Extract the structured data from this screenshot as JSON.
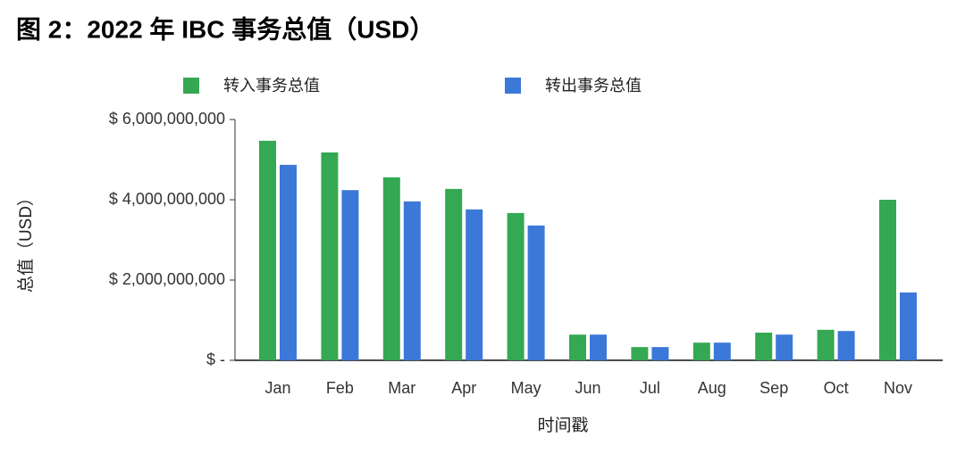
{
  "chart_data": {
    "type": "bar",
    "title": "图 2：2022 年 IBC 事务总值（USD）",
    "x_label": "时间戳",
    "y_label": "总值（USD）",
    "categories": [
      "Jan",
      "Feb",
      "Mar",
      "Apr",
      "May",
      "Jun",
      "Jul",
      "Aug",
      "Sep",
      "Oct",
      "Nov"
    ],
    "series": [
      {
        "name": "转入事务总值",
        "color": "#34a853",
        "values": [
          5470000000,
          5180000000,
          4560000000,
          4270000000,
          3670000000,
          640000000,
          330000000,
          440000000,
          690000000,
          760000000,
          4000000000
        ]
      },
      {
        "name": "转出事务总值",
        "color": "#3c78d8",
        "values": [
          4870000000,
          4240000000,
          3960000000,
          3760000000,
          3360000000,
          640000000,
          330000000,
          440000000,
          640000000,
          730000000,
          1690000000
        ]
      }
    ],
    "ylim": [
      0,
      6000000000
    ],
    "yticks": [
      {
        "value": 0,
        "label": "$ -"
      },
      {
        "value": 2000000000,
        "label": "$ 2,000,000,000"
      },
      {
        "value": 4000000000,
        "label": "$ 4,000,000,000"
      },
      {
        "value": 6000000000,
        "label": "$ 6,000,000,000"
      }
    ],
    "legend": "top"
  }
}
